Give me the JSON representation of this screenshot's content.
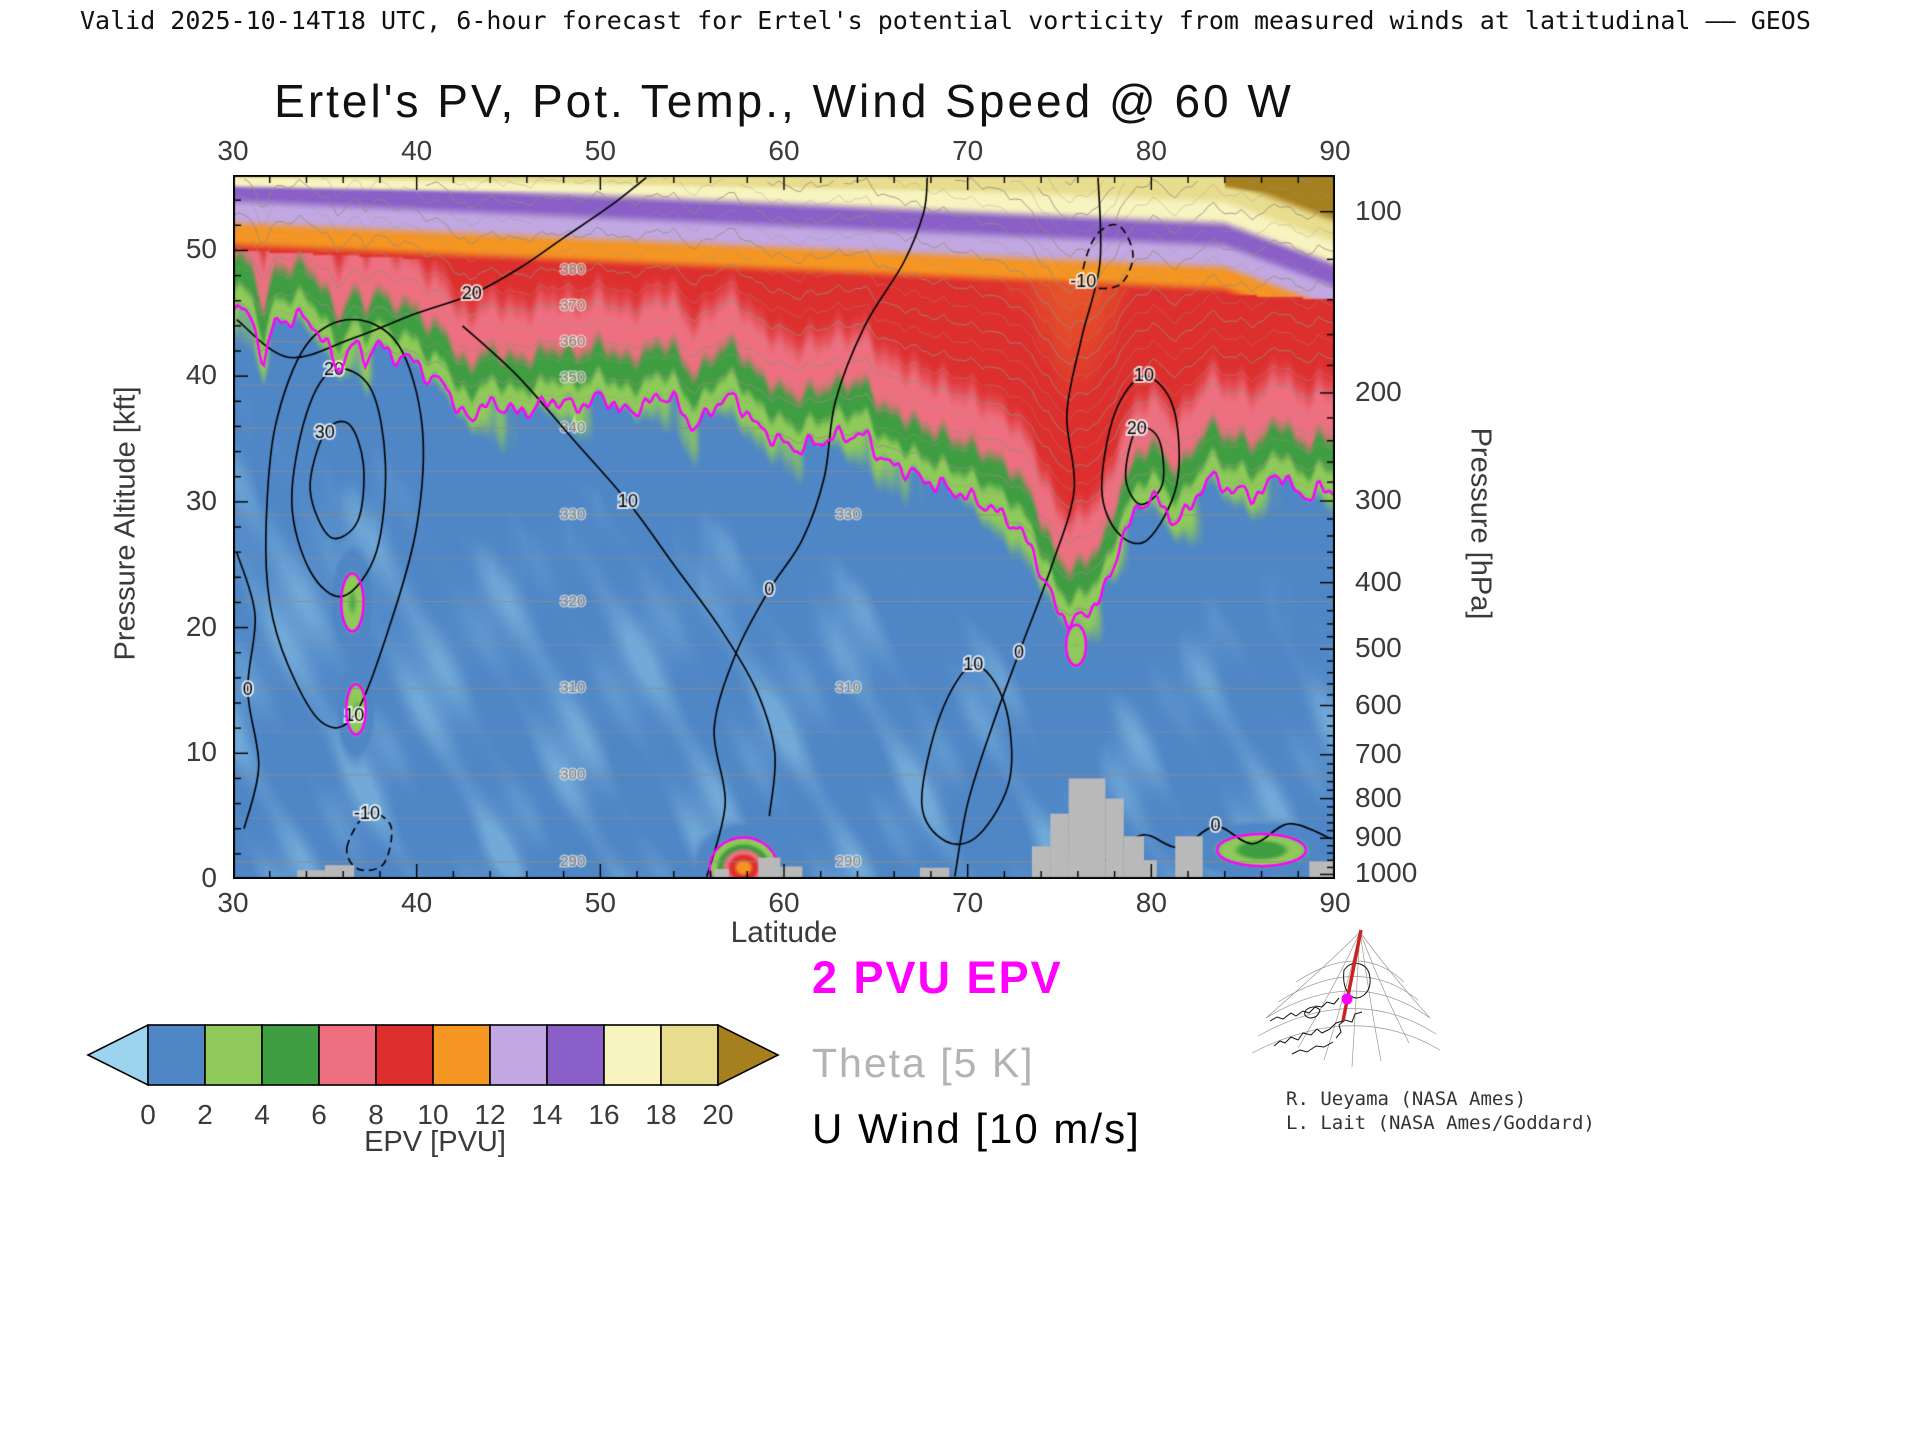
{
  "header": {
    "validity_line": "Valid 2025-10-14T18 UTC, 6-hour forecast for Ertel's potential vorticity from measured winds at latitudinal —— GEOS"
  },
  "credits": {
    "line1": "R. Ueyama (NASA Ames)",
    "line2": "L. Lait (NASA Ames/Goddard)"
  },
  "map_inset": {
    "graticule_color": "#999999",
    "coast_color": "#111111",
    "cross_section_line_color": "#cc2222",
    "marker_color": "#ff00ff"
  },
  "chart_data": {
    "type": "heatmap",
    "title": "Ertel's PV, Pot. Temp., Wind Speed @ 60 W",
    "xlabel": "Latitude",
    "ylabel_left": "Pressure Altitude [kft]",
    "ylabel_right": "Pressure [hPa]",
    "x_range": [
      30,
      90
    ],
    "x_ticks": [
      30,
      40,
      50,
      60,
      70,
      80,
      90
    ],
    "x_minor_step": 2,
    "y_left_range": [
      0,
      56
    ],
    "y_left_ticks": [
      0,
      10,
      20,
      30,
      40,
      50
    ],
    "y_left_minor_step": 2,
    "y_right_ticks": [
      100,
      200,
      300,
      400,
      500,
      600,
      700,
      800,
      900,
      1000
    ],
    "grid": false,
    "legend_position": "below-left",
    "colorbar": {
      "label": "EPV [PVU]",
      "ticks": [
        0,
        2,
        4,
        6,
        8,
        10,
        12,
        14,
        16,
        18,
        20
      ],
      "colors": [
        "#9cd4f0",
        "#4f86c6",
        "#8fca5a",
        "#3f9e42",
        "#ee7080",
        "#dd2f2e",
        "#f59522",
        "#c2a8e2",
        "#8a5fc8",
        "#f8f4c0",
        "#e8dd8e",
        "#a6801e"
      ]
    },
    "legend": [
      {
        "label": "2 PVU EPV",
        "color": "#ff00ff"
      },
      {
        "label": "Theta [5 K]",
        "color": "#b3b3b3"
      },
      {
        "label": "U Wind [10 m/s]",
        "color": "#000000"
      }
    ],
    "tropopause_2pvu_kft": [
      [
        30,
        45.5
      ],
      [
        31,
        44
      ],
      [
        31.7,
        41.5
      ],
      [
        32.3,
        45
      ],
      [
        33,
        44.5
      ],
      [
        34,
        44
      ],
      [
        35,
        43
      ],
      [
        35.8,
        41
      ],
      [
        36.5,
        42.5
      ],
      [
        37.2,
        40.8
      ],
      [
        38,
        42.5
      ],
      [
        39,
        42
      ],
      [
        40,
        41
      ],
      [
        40.7,
        38.8
      ],
      [
        41.5,
        40
      ],
      [
        42.3,
        37.5
      ],
      [
        43,
        36.8
      ],
      [
        44,
        37.2
      ],
      [
        45,
        37.8
      ],
      [
        46,
        37.5
      ],
      [
        47,
        37.2
      ],
      [
        48,
        38
      ],
      [
        49,
        38.2
      ],
      [
        50,
        38
      ],
      [
        51,
        37
      ],
      [
        52,
        38
      ],
      [
        53,
        38.2
      ],
      [
        54,
        37.6
      ],
      [
        55,
        36.4
      ],
      [
        56,
        37.5
      ],
      [
        57,
        37.8
      ],
      [
        58,
        37.2
      ],
      [
        59,
        36
      ],
      [
        60,
        34.2
      ],
      [
        60.6,
        33.6
      ],
      [
        61.5,
        35
      ],
      [
        62.5,
        35.5
      ],
      [
        63.5,
        34.6
      ],
      [
        64.5,
        35.2
      ],
      [
        65.5,
        33.8
      ],
      [
        66.5,
        32.2
      ],
      [
        67.5,
        31.4
      ],
      [
        68.5,
        32
      ],
      [
        69.5,
        30.6
      ],
      [
        70.5,
        29.4
      ],
      [
        71.5,
        29.8
      ],
      [
        72.5,
        28.6
      ],
      [
        73.2,
        26.5
      ],
      [
        74,
        24
      ],
      [
        74.8,
        22
      ],
      [
        75.5,
        21
      ],
      [
        76.3,
        20.6
      ],
      [
        77,
        21.4
      ],
      [
        77.8,
        24
      ],
      [
        78.3,
        27.5
      ],
      [
        79,
        29.2
      ],
      [
        80,
        30
      ],
      [
        81,
        28.6
      ],
      [
        82,
        29.8
      ],
      [
        83,
        31.5
      ],
      [
        84,
        30.8
      ],
      [
        85,
        31.4
      ],
      [
        86,
        30.6
      ],
      [
        87,
        31.8
      ],
      [
        88,
        30.9
      ],
      [
        89,
        31.2
      ],
      [
        90,
        30.2
      ]
    ],
    "theta_contours_k": {
      "min": 280,
      "max": 460,
      "step": 5,
      "labeled": [
        290,
        300,
        310,
        320,
        330,
        340,
        350,
        360,
        370,
        380
      ],
      "labeled_secondary": [
        290,
        310,
        330
      ]
    },
    "wind_contours_ms": [
      {
        "label": "30",
        "closed": true,
        "pts": [
          [
            34.2,
            31
          ],
          [
            35,
            35.5
          ],
          [
            36.3,
            36.2
          ],
          [
            37.1,
            33
          ],
          [
            36.8,
            28.5
          ],
          [
            35.3,
            27.2
          ]
        ],
        "label_at": 1
      },
      {
        "label": "20",
        "closed": true,
        "pts": [
          [
            33.2,
            30
          ],
          [
            34,
            37
          ],
          [
            35.5,
            40.5
          ],
          [
            37.5,
            39
          ],
          [
            38.3,
            33
          ],
          [
            37.8,
            26
          ],
          [
            36,
            22.5
          ],
          [
            34.2,
            24.5
          ]
        ],
        "label_at": 2
      },
      {
        "label": "10",
        "closed": true,
        "pts": [
          [
            31.8,
            28
          ],
          [
            32.3,
            36
          ],
          [
            34,
            42.5
          ],
          [
            36.5,
            44.5
          ],
          [
            39,
            42.5
          ],
          [
            40.3,
            36
          ],
          [
            40,
            28
          ],
          [
            38.5,
            20
          ],
          [
            36.6,
            13
          ],
          [
            34.8,
            12.5
          ],
          [
            33,
            17
          ],
          [
            32,
            22
          ]
        ],
        "label_at": 8
      },
      {
        "label": "-10",
        "closed": true,
        "dashed": true,
        "pts": [
          [
            36.2,
            2.5
          ],
          [
            37.3,
            5.2
          ],
          [
            38.6,
            4.2
          ],
          [
            38.2,
            1.2
          ],
          [
            36.8,
            0.8
          ]
        ],
        "label_at": 1
      },
      {
        "label": "0",
        "closed": false,
        "pts": [
          [
            55.8,
            0.2
          ],
          [
            56.8,
            6
          ],
          [
            56.2,
            12
          ],
          [
            57.4,
            18
          ],
          [
            59.2,
            23
          ],
          [
            61,
            27
          ],
          [
            62.2,
            32
          ],
          [
            62.8,
            38
          ],
          [
            64.4,
            44
          ],
          [
            66.5,
            49
          ],
          [
            67.6,
            53
          ],
          [
            67.8,
            55.8
          ]
        ],
        "label_at": 4
      },
      {
        "label": "0",
        "closed": false,
        "pts": [
          [
            69.3,
            0.2
          ],
          [
            70,
            6
          ],
          [
            71.3,
            12
          ],
          [
            72.8,
            18
          ],
          [
            74.6,
            25
          ],
          [
            75.8,
            31
          ],
          [
            75.4,
            37
          ],
          [
            76.2,
            43
          ],
          [
            77.2,
            49
          ],
          [
            77.1,
            55.8
          ]
        ],
        "label_at": 3
      },
      {
        "label": "10",
        "closed": true,
        "pts": [
          [
            67.5,
            6
          ],
          [
            68.5,
            13
          ],
          [
            70.3,
            17
          ],
          [
            72,
            14
          ],
          [
            72.3,
            8
          ],
          [
            70.6,
            3.5
          ],
          [
            68.8,
            3
          ]
        ],
        "label_at": 2
      },
      {
        "label": "10",
        "closed": true,
        "pts": [
          [
            77.3,
            31
          ],
          [
            78,
            37
          ],
          [
            79.6,
            40
          ],
          [
            81.2,
            37.5
          ],
          [
            81.4,
            31.5
          ],
          [
            79.8,
            27
          ],
          [
            78.2,
            27.5
          ]
        ],
        "label_at": 2
      },
      {
        "label": "20",
        "closed": true,
        "pts": [
          [
            78.6,
            32
          ],
          [
            79.2,
            35.8
          ],
          [
            80.4,
            35
          ],
          [
            80.6,
            31.4
          ],
          [
            79.4,
            29.8
          ]
        ],
        "label_at": 1
      },
      {
        "label": "10",
        "closed": false,
        "pts": [
          [
            42.5,
            44
          ],
          [
            45.5,
            40
          ],
          [
            48.5,
            35
          ],
          [
            51.5,
            30
          ],
          [
            54,
            25
          ],
          [
            56.5,
            20
          ],
          [
            58.5,
            15
          ],
          [
            59.5,
            10
          ],
          [
            59.2,
            5
          ]
        ],
        "label_at": 3
      },
      {
        "label": "20",
        "closed": false,
        "pts": [
          [
            30.2,
            44.5
          ],
          [
            33,
            41.5
          ],
          [
            36.5,
            43
          ],
          [
            40,
            45
          ],
          [
            43,
            46.5
          ],
          [
            45.5,
            48.5
          ],
          [
            48,
            51
          ],
          [
            50.5,
            53.5
          ],
          [
            52.5,
            55.8
          ]
        ],
        "label_at": 4
      },
      {
        "label": "0",
        "closed": false,
        "pts": [
          [
            77.5,
            1.5
          ],
          [
            79.5,
            3.5
          ],
          [
            81.5,
            2.5
          ],
          [
            83.5,
            4.2
          ],
          [
            85.5,
            2.8
          ],
          [
            87.5,
            4.4
          ],
          [
            89.8,
            3.2
          ]
        ],
        "label_at": 3
      },
      {
        "label": "0",
        "closed": false,
        "pts": [
          [
            30.2,
            26
          ],
          [
            31.2,
            21
          ],
          [
            30.8,
            15
          ],
          [
            31.4,
            9
          ],
          [
            30.6,
            4
          ]
        ],
        "label_at": 2
      },
      {
        "label": "-10",
        "closed": true,
        "dashed": true,
        "pts": [
          [
            76.3,
            47.5
          ],
          [
            76.9,
            51
          ],
          [
            78.2,
            52
          ],
          [
            79,
            49.6
          ],
          [
            78.2,
            47.2
          ]
        ],
        "label_at": 0
      }
    ],
    "pv_anomalies": [
      {
        "lat": 57.8,
        "alt_kft": 0.9,
        "peak_pvu": 11,
        "rlat": 1.0,
        "ralt": 1.3
      },
      {
        "lat": 36.5,
        "alt_kft": 22.0,
        "peak_pvu": 4.2,
        "rlat": 0.5,
        "ralt": 1.9
      },
      {
        "lat": 36.7,
        "alt_kft": 13.5,
        "peak_pvu": 4.0,
        "rlat": 0.45,
        "ralt": 1.7
      },
      {
        "lat": 75.9,
        "alt_kft": 18.6,
        "peak_pvu": 3.6,
        "rlat": 0.5,
        "ralt": 1.5
      },
      {
        "lat": 86.0,
        "alt_kft": 2.3,
        "peak_pvu": 5.5,
        "rlat": 1.7,
        "ralt": 0.9
      }
    ],
    "terrain_gray_blobs": [
      {
        "lat0": 33.5,
        "lat1": 35.0,
        "kft": 0.7
      },
      {
        "lat0": 35.0,
        "lat1": 36.6,
        "kft": 1.1
      },
      {
        "lat0": 56.2,
        "lat1": 57.0,
        "kft": 0.8
      },
      {
        "lat0": 58.6,
        "lat1": 59.8,
        "kft": 1.7
      },
      {
        "lat0": 59.8,
        "lat1": 61.0,
        "kft": 1.0
      },
      {
        "lat0": 67.4,
        "lat1": 69.0,
        "kft": 0.9
      },
      {
        "lat0": 73.5,
        "lat1": 74.5,
        "kft": 2.6
      },
      {
        "lat0": 74.5,
        "lat1": 75.5,
        "kft": 5.2
      },
      {
        "lat0": 75.5,
        "lat1": 77.5,
        "kft": 8.0
      },
      {
        "lat0": 77.5,
        "lat1": 78.5,
        "kft": 6.4
      },
      {
        "lat0": 78.5,
        "lat1": 79.6,
        "kft": 3.4
      },
      {
        "lat0": 79.6,
        "lat1": 80.3,
        "kft": 1.5
      },
      {
        "lat0": 81.3,
        "lat1": 82.8,
        "kft": 3.4
      },
      {
        "lat0": 88.6,
        "lat1": 90.0,
        "kft": 1.4
      }
    ],
    "pv_color_midpoint_values": [
      -1,
      1,
      3,
      5,
      7,
      9,
      11,
      13,
      15,
      17,
      19,
      21
    ]
  }
}
